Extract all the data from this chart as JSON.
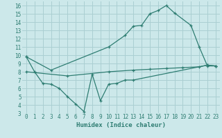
{
  "title": "",
  "xlabel": "Humidex (Indice chaleur)",
  "ylabel": "",
  "bg_color": "#cce8ea",
  "line_color": "#2e7d72",
  "grid_color": "#aacfd2",
  "xlim": [
    -0.5,
    23.5
  ],
  "ylim": [
    3,
    16.5
  ],
  "xticks": [
    0,
    1,
    2,
    3,
    4,
    5,
    6,
    7,
    8,
    9,
    10,
    11,
    12,
    13,
    14,
    15,
    16,
    17,
    18,
    19,
    20,
    21,
    22,
    23
  ],
  "yticks": [
    3,
    4,
    5,
    6,
    7,
    8,
    9,
    10,
    11,
    12,
    13,
    14,
    15,
    16
  ],
  "line1_x": [
    0,
    1,
    2,
    3,
    4,
    5,
    6,
    7,
    8,
    9,
    10,
    11,
    12,
    13,
    22,
    23
  ],
  "line1_y": [
    9.8,
    8.0,
    6.6,
    6.5,
    6.0,
    5.0,
    4.1,
    3.2,
    7.7,
    4.5,
    6.5,
    6.6,
    7.0,
    7.0,
    8.8,
    8.7
  ],
  "line2_x": [
    0,
    3,
    10,
    12,
    13,
    14,
    15,
    16,
    17,
    18,
    20,
    21,
    22,
    23
  ],
  "line2_y": [
    9.8,
    8.2,
    11.0,
    12.4,
    13.5,
    13.6,
    15.0,
    15.4,
    16.0,
    15.1,
    13.6,
    11.0,
    8.7,
    8.7
  ],
  "line3_x": [
    0,
    5,
    10,
    13,
    15,
    17,
    19,
    21,
    22,
    23
  ],
  "line3_y": [
    8.0,
    7.5,
    8.0,
    8.2,
    8.3,
    8.4,
    8.5,
    8.6,
    8.8,
    8.7
  ],
  "xlabel_fontsize": 6.5,
  "tick_fontsize": 5.5
}
